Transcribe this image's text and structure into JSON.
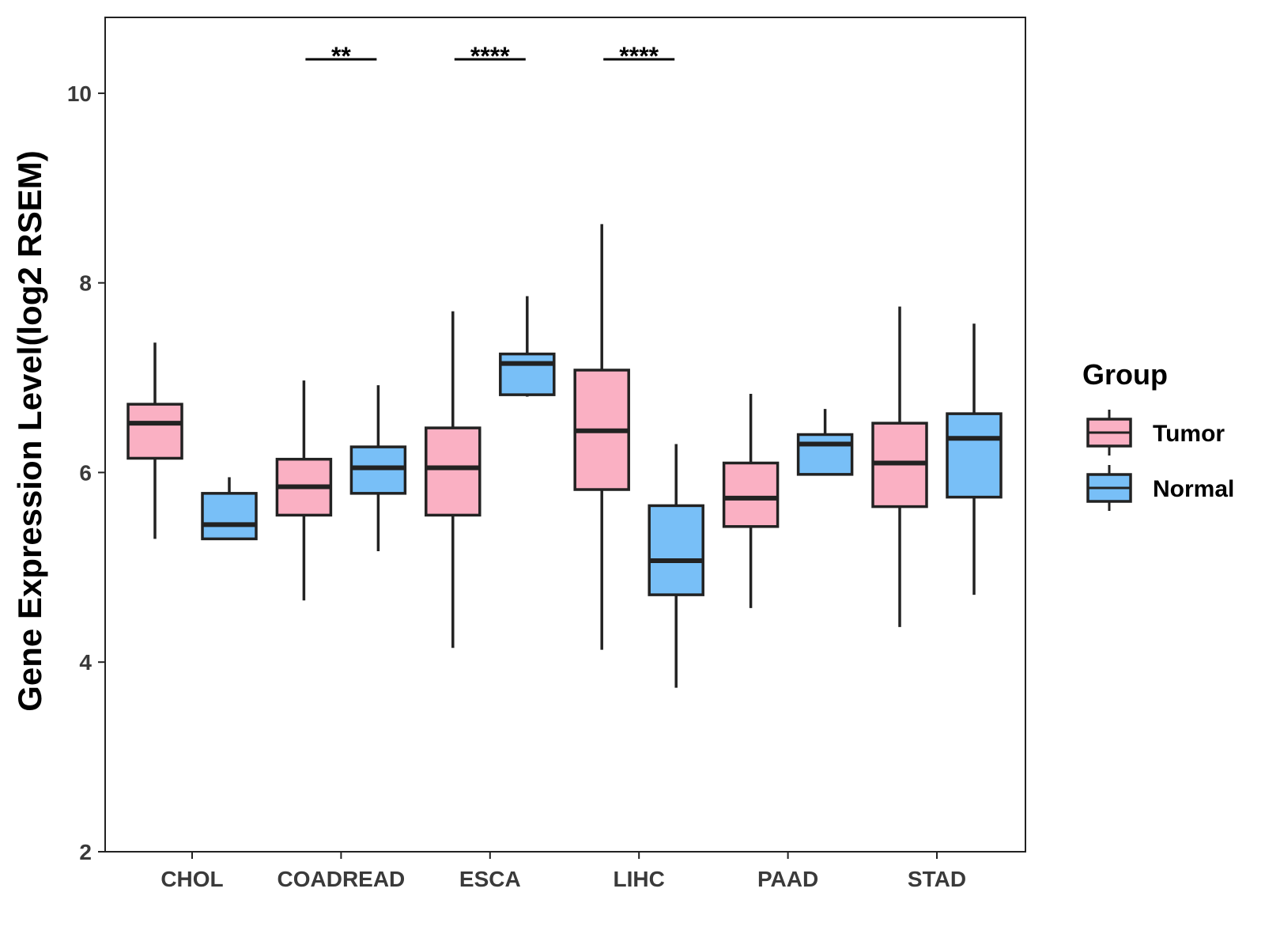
{
  "chart_data": {
    "type": "boxplot",
    "ylabel": "Gene Expression Level(log2 RSEM)",
    "xlabel": "",
    "ylim": [
      2,
      10.8
    ],
    "yticks": [
      2,
      4,
      6,
      8,
      10
    ],
    "grid": false,
    "categories": [
      "CHOL",
      "COADREAD",
      "ESCA",
      "LIHC",
      "PAAD",
      "STAD"
    ],
    "legend": {
      "title": "Group",
      "position": "right",
      "entries": [
        {
          "name": "Tumor",
          "color": "#FAB0C3"
        },
        {
          "name": "Normal",
          "color": "#78BFF7"
        }
      ]
    },
    "series": [
      {
        "name": "Tumor",
        "color": "#FAB0C3",
        "boxes": [
          {
            "min": 5.3,
            "q1": 6.15,
            "median": 6.52,
            "q3": 6.72,
            "max": 7.37
          },
          {
            "min": 4.65,
            "q1": 5.55,
            "median": 5.85,
            "q3": 6.14,
            "max": 6.97
          },
          {
            "min": 4.15,
            "q1": 5.55,
            "median": 6.05,
            "q3": 6.47,
            "max": 7.7
          },
          {
            "min": 4.13,
            "q1": 5.82,
            "median": 6.44,
            "q3": 7.08,
            "max": 8.62
          },
          {
            "min": 4.57,
            "q1": 5.43,
            "median": 5.73,
            "q3": 6.1,
            "max": 6.83
          },
          {
            "min": 4.37,
            "q1": 5.64,
            "median": 6.1,
            "q3": 6.52,
            "max": 7.75
          }
        ]
      },
      {
        "name": "Normal",
        "color": "#78BFF7",
        "boxes": [
          {
            "min": 5.3,
            "q1": 5.3,
            "median": 5.45,
            "q3": 5.78,
            "max": 5.95
          },
          {
            "min": 5.17,
            "q1": 5.78,
            "median": 6.05,
            "q3": 6.27,
            "max": 6.92
          },
          {
            "min": 6.8,
            "q1": 6.82,
            "median": 7.15,
            "q3": 7.25,
            "max": 7.86
          },
          {
            "min": 3.73,
            "q1": 4.71,
            "median": 5.07,
            "q3": 5.65,
            "max": 6.3
          },
          {
            "min": 5.98,
            "q1": 5.98,
            "median": 6.3,
            "q3": 6.4,
            "max": 6.67
          },
          {
            "min": 4.71,
            "q1": 5.74,
            "median": 6.36,
            "q3": 6.62,
            "max": 7.57
          }
        ]
      }
    ],
    "significance": [
      {
        "category": "COADREAD",
        "label": "**"
      },
      {
        "category": "ESCA",
        "label": "****"
      },
      {
        "category": "LIHC",
        "label": "****"
      }
    ]
  }
}
